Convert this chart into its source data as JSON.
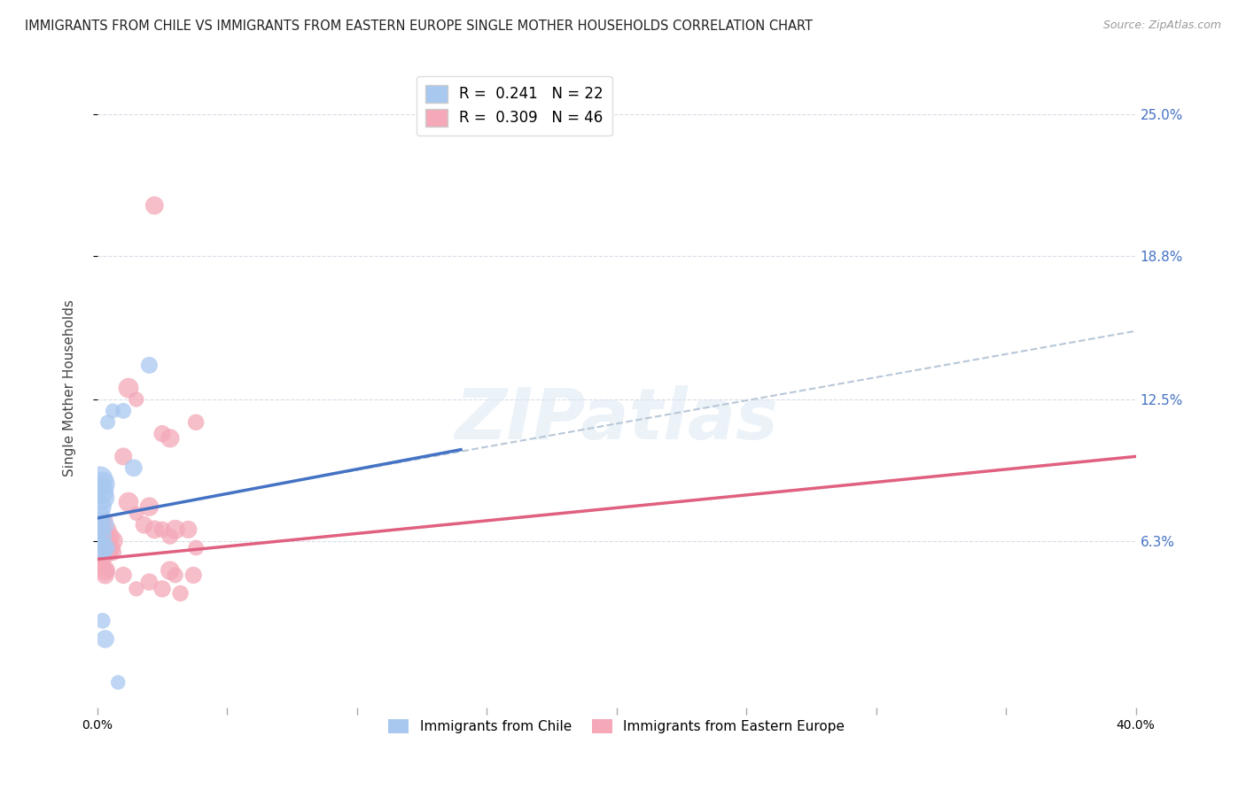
{
  "title": "IMMIGRANTS FROM CHILE VS IMMIGRANTS FROM EASTERN EUROPE SINGLE MOTHER HOUSEHOLDS CORRELATION CHART",
  "source": "Source: ZipAtlas.com",
  "ylabel": "Single Mother Households",
  "ytick_labels": [
    "6.3%",
    "12.5%",
    "18.8%",
    "25.0%"
  ],
  "ytick_values": [
    0.063,
    0.125,
    0.188,
    0.25
  ],
  "xlim": [
    0.0,
    0.4
  ],
  "ylim": [
    -0.01,
    0.27
  ],
  "chile_label": "Immigrants from Chile",
  "eastern_label": "Immigrants from Eastern Europe",
  "chile_color": "#a8c8f0",
  "eastern_color": "#f4a8b8",
  "chile_line_color": "#4472c4",
  "eastern_line_color": "#e06080",
  "dashed_line_color": "#b8c8d8",
  "watermark": "ZIPatlas",
  "chile_R": 0.241,
  "chile_N": 22,
  "eastern_R": 0.309,
  "eastern_N": 46,
  "background_color": "#ffffff",
  "grid_color": "#d8dce8",
  "chile_points": [
    [
      0.001,
      0.085
    ],
    [
      0.001,
      0.09
    ],
    [
      0.002,
      0.088
    ],
    [
      0.002,
      0.082
    ],
    [
      0.001,
      0.078
    ],
    [
      0.002,
      0.075
    ],
    [
      0.002,
      0.072
    ],
    [
      0.001,
      0.068
    ],
    [
      0.003,
      0.07
    ],
    [
      0.002,
      0.065
    ],
    [
      0.001,
      0.063
    ],
    [
      0.002,
      0.06
    ],
    [
      0.003,
      0.06
    ],
    [
      0.002,
      0.058
    ],
    [
      0.004,
      0.115
    ],
    [
      0.006,
      0.12
    ],
    [
      0.01,
      0.12
    ],
    [
      0.014,
      0.095
    ],
    [
      0.02,
      0.14
    ],
    [
      0.002,
      0.028
    ],
    [
      0.003,
      0.02
    ],
    [
      0.008,
      0.001
    ]
  ],
  "eastern_points": [
    [
      0.001,
      0.06
    ],
    [
      0.002,
      0.058
    ],
    [
      0.002,
      0.065
    ],
    [
      0.003,
      0.062
    ],
    [
      0.001,
      0.055
    ],
    [
      0.002,
      0.052
    ],
    [
      0.003,
      0.058
    ],
    [
      0.002,
      0.07
    ],
    [
      0.003,
      0.072
    ],
    [
      0.004,
      0.068
    ],
    [
      0.005,
      0.065
    ],
    [
      0.004,
      0.063
    ],
    [
      0.004,
      0.06
    ],
    [
      0.005,
      0.06
    ],
    [
      0.005,
      0.058
    ],
    [
      0.006,
      0.063
    ],
    [
      0.006,
      0.06
    ],
    [
      0.006,
      0.058
    ],
    [
      0.003,
      0.05
    ],
    [
      0.004,
      0.05
    ],
    [
      0.003,
      0.048
    ],
    [
      0.012,
      0.13
    ],
    [
      0.015,
      0.125
    ],
    [
      0.01,
      0.1
    ],
    [
      0.012,
      0.08
    ],
    [
      0.015,
      0.075
    ],
    [
      0.018,
      0.07
    ],
    [
      0.02,
      0.078
    ],
    [
      0.022,
      0.068
    ],
    [
      0.01,
      0.048
    ],
    [
      0.015,
      0.042
    ],
    [
      0.02,
      0.045
    ],
    [
      0.025,
      0.068
    ],
    [
      0.025,
      0.042
    ],
    [
      0.028,
      0.065
    ],
    [
      0.03,
      0.068
    ],
    [
      0.028,
      0.05
    ],
    [
      0.03,
      0.048
    ],
    [
      0.035,
      0.068
    ],
    [
      0.038,
      0.06
    ],
    [
      0.037,
      0.048
    ],
    [
      0.032,
      0.04
    ],
    [
      0.022,
      0.21
    ],
    [
      0.038,
      0.115
    ],
    [
      0.025,
      0.11
    ],
    [
      0.028,
      0.108
    ]
  ],
  "chile_line_endpoints": [
    [
      0.0,
      0.073
    ],
    [
      0.14,
      0.103
    ]
  ],
  "eastern_line_endpoints": [
    [
      0.0,
      0.055
    ],
    [
      0.4,
      0.1
    ]
  ],
  "dashed_line_endpoints": [
    [
      0.07,
      0.088
    ],
    [
      0.4,
      0.155
    ]
  ]
}
